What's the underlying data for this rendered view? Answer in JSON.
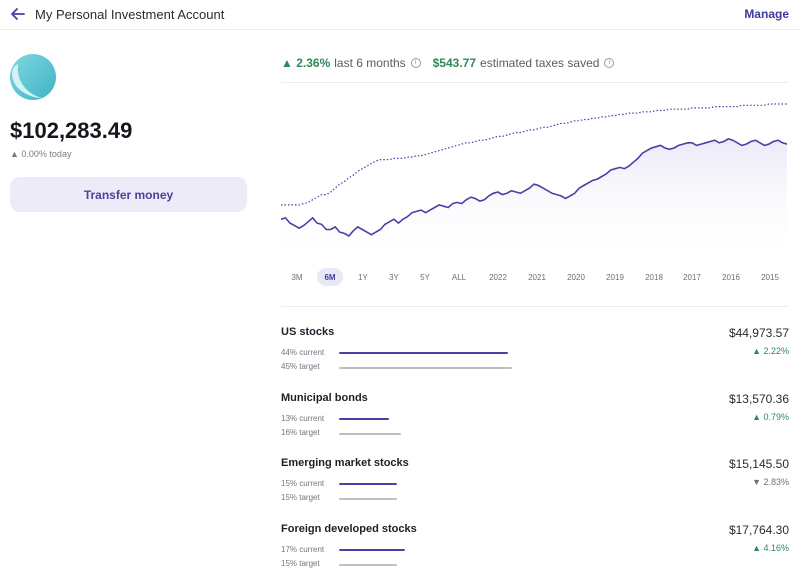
{
  "header": {
    "title": "My Personal Investment Account",
    "manage_label": "Manage"
  },
  "account": {
    "balance": "$102,283.49",
    "today_change": "▲ 0.00% today",
    "transfer_label": "Transfer money"
  },
  "stats": {
    "return_value": "▲ 2.36%",
    "return_label": "last 6 months",
    "taxes_value": "$543.77",
    "taxes_label": "estimated taxes saved",
    "info_glyph": "i"
  },
  "timeframes": [
    "3M",
    "6M",
    "1Y",
    "3Y",
    "5Y",
    "ALL",
    "2022",
    "2021",
    "2020",
    "2019",
    "2018",
    "2017",
    "2016",
    "2015"
  ],
  "selected_timeframe": "6M",
  "colors": {
    "accent": "#4b3fa6",
    "positive": "#2f8a5a",
    "chart_fill": "#ece9f8"
  },
  "chart_data": {
    "type": "line",
    "x_unit": "trading days (last 6 months)",
    "series": [
      {
        "style": "solid",
        "values": [
          111,
          112,
          108,
          106,
          104,
          106,
          109,
          112,
          108,
          107,
          103,
          103,
          105,
          101,
          100,
          98,
          102,
          105,
          103,
          101,
          99,
          101,
          103,
          107,
          109,
          111,
          108,
          111,
          113,
          116,
          117,
          118,
          116,
          118,
          120,
          122,
          121,
          120,
          123,
          124,
          123,
          126,
          128,
          127,
          125,
          126,
          129,
          131,
          132,
          130,
          131,
          133,
          132,
          131,
          133,
          135,
          138,
          137,
          135,
          133,
          131,
          130,
          129,
          127,
          129,
          131,
          135,
          137,
          139,
          141,
          142,
          144,
          146,
          149,
          150,
          151,
          150,
          152,
          155,
          158,
          162,
          164,
          166,
          167,
          168,
          166,
          165,
          166,
          168,
          169,
          170,
          170,
          168,
          169,
          170,
          171,
          172,
          170,
          171,
          173,
          172,
          170,
          168,
          169,
          171,
          172,
          170,
          168,
          169,
          171,
          172,
          170,
          169
        ]
      },
      {
        "style": "dotted",
        "values": [
          122,
          122,
          122,
          122,
          122,
          123,
          124,
          126,
          128,
          130,
          130,
          132,
          135,
          138,
          140,
          143,
          145,
          148,
          150,
          152,
          154,
          156,
          157,
          157,
          157,
          158,
          158,
          158,
          159,
          159,
          160,
          160,
          161,
          162,
          163,
          164,
          165,
          166,
          167,
          168,
          169,
          170,
          170,
          171,
          172,
          172,
          173,
          174,
          175,
          175,
          176,
          177,
          178,
          178,
          179,
          180,
          180,
          181,
          182,
          182,
          183,
          184,
          185,
          185,
          186,
          187,
          187,
          188,
          188,
          189,
          189,
          190,
          190,
          191,
          191,
          192,
          192,
          193,
          193,
          193,
          194,
          194,
          194,
          195,
          195,
          195,
          196,
          196,
          196,
          196,
          196,
          197,
          197,
          197,
          197,
          197,
          198,
          198,
          198,
          198,
          198,
          198,
          199,
          199,
          199,
          199,
          199,
          199,
          200,
          200,
          200,
          200,
          200
        ]
      }
    ]
  },
  "allocations": [
    {
      "name": "US stocks",
      "amount": "$44,973.57",
      "change": "▲ 2.22%",
      "direction": "up",
      "current_label": "44% current",
      "target_label": "45% target",
      "current_pct": 44,
      "target_pct": 45
    },
    {
      "name": "Municipal bonds",
      "amount": "$13,570.36",
      "change": "▲ 0.79%",
      "direction": "up",
      "current_label": "13% current",
      "target_label": "16% target",
      "current_pct": 13,
      "target_pct": 16
    },
    {
      "name": "Emerging market stocks",
      "amount": "$15,145.50",
      "change": "▼ 2.83%",
      "direction": "down",
      "current_label": "15% current",
      "target_label": "15% target",
      "current_pct": 15,
      "target_pct": 15
    },
    {
      "name": "Foreign developed stocks",
      "amount": "$17,764.30",
      "change": "▲ 4.16%",
      "direction": "up",
      "current_label": "17% current",
      "target_label": "15% target",
      "current_pct": 17,
      "target_pct": 15
    }
  ]
}
